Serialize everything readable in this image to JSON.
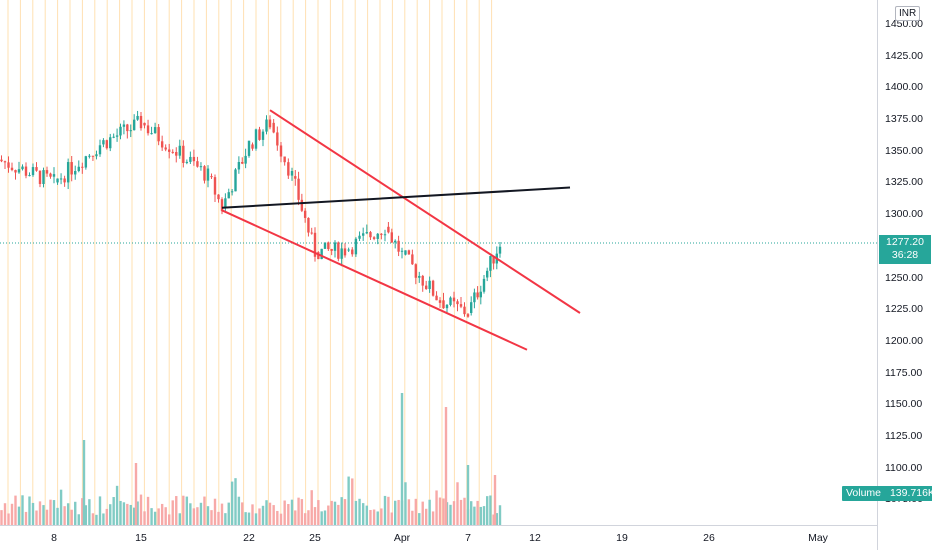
{
  "price_scale": {
    "currency": "INR",
    "ticks": [
      "1450.00",
      "1425.00",
      "1400.00",
      "1375.00",
      "1350.00",
      "1325.00",
      "1300.00",
      "1275.00",
      "1250.00",
      "1225.00",
      "1200.00",
      "1175.00",
      "1150.00",
      "1125.00",
      "1100.00",
      "1075.00"
    ]
  },
  "time_scale": {
    "ticks": [
      "8",
      "15",
      "22",
      "25",
      "Apr",
      "7",
      "12",
      "19",
      "26",
      "May"
    ]
  },
  "last_price": {
    "value": "1277.20",
    "countdown": "36:28"
  },
  "volume": {
    "label": "Volume",
    "value": "139.716K"
  },
  "colors": {
    "up": "#26a69a",
    "down": "#ef5350",
    "up_vol": "#80cbc4",
    "down_vol": "#f7a9a7",
    "trendline_red": "#f23645",
    "trendline_black": "#131722",
    "session_line": "#ffe0b2"
  },
  "chart_data": {
    "type": "candlestick",
    "ylim": [
      1075,
      1450
    ],
    "grid": true,
    "trendlines": [
      {
        "color": "red",
        "from": [
          "Mar 23",
          1382
        ],
        "to": [
          "Apr 16",
          1222
        ]
      },
      {
        "color": "red",
        "from": [
          "Mar 20",
          1303
        ],
        "to": [
          "Apr 12",
          1193
        ]
      },
      {
        "color": "black",
        "from": [
          "Mar 20",
          1305
        ],
        "to": [
          "Apr 15",
          1321
        ]
      }
    ],
    "segments": [
      {
        "from": "Mar 5",
        "to": "Mar 8",
        "open": 1352,
        "close": 1325,
        "high": 1360,
        "low": 1307
      },
      {
        "from": "Mar 8",
        "to": "Mar 12",
        "open": 1325,
        "close": 1355,
        "high": 1365,
        "low": 1315
      },
      {
        "from": "Mar 12",
        "to": "Mar 15",
        "open": 1355,
        "close": 1372,
        "high": 1390,
        "low": 1348
      },
      {
        "from": "Mar 15",
        "to": "Mar 19",
        "open": 1372,
        "close": 1330,
        "high": 1375,
        "low": 1320
      },
      {
        "from": "Mar 19",
        "to": "Mar 20",
        "open": 1330,
        "close": 1305,
        "high": 1335,
        "low": 1300
      },
      {
        "from": "Mar 20",
        "to": "Mar 22",
        "open": 1305,
        "close": 1355,
        "high": 1360,
        "low": 1302
      },
      {
        "from": "Mar 22",
        "to": "Mar 23",
        "open": 1355,
        "close": 1372,
        "high": 1378,
        "low": 1350
      },
      {
        "from": "Mar 23",
        "to": "Mar 24",
        "open": 1372,
        "close": 1330,
        "high": 1375,
        "low": 1322
      },
      {
        "from": "Mar 24",
        "to": "Mar 25",
        "open": 1330,
        "close": 1270,
        "high": 1335,
        "low": 1262
      },
      {
        "from": "Mar 25",
        "to": "Mar 27",
        "open": 1270,
        "close": 1272,
        "high": 1285,
        "low": 1258
      },
      {
        "from": "Mar 27",
        "to": "Mar 31",
        "open": 1272,
        "close": 1290,
        "high": 1300,
        "low": 1265
      },
      {
        "from": "Mar 31",
        "to": "Apr 1",
        "open": 1290,
        "close": 1268,
        "high": 1296,
        "low": 1262
      },
      {
        "from": "Apr 1",
        "to": "Apr 4",
        "open": 1268,
        "close": 1232,
        "high": 1272,
        "low": 1225
      },
      {
        "from": "Apr 4",
        "to": "Apr 7",
        "open": 1232,
        "close": 1222,
        "high": 1250,
        "low": 1215
      },
      {
        "from": "Apr 7",
        "to": "Apr 8",
        "open": 1222,
        "close": 1250,
        "high": 1252,
        "low": 1220
      },
      {
        "from": "Apr 8",
        "to": "Apr 9",
        "open": 1250,
        "close": 1277.2,
        "high": 1280,
        "low": 1245
      }
    ]
  }
}
